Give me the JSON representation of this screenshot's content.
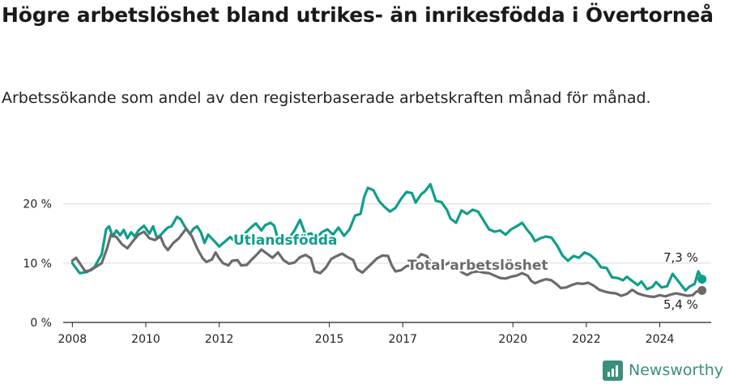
{
  "title": "Högre arbetslöshet bland utrikes- än inrikesfödda i Övertorneå",
  "subtitle": "Arbetssökande som andel av den registerbaserade arbetskraften månad för månad.",
  "brand": {
    "name": "Newsworthy",
    "color": "#3a8f7d"
  },
  "chart_data": {
    "type": "line",
    "ylim": [
      0,
      25
    ],
    "xlim": [
      2007.75,
      2025.4
    ],
    "y_ticks": [
      0,
      10,
      20
    ],
    "y_tick_labels": [
      "0 %",
      "10 %",
      "20 %"
    ],
    "x_ticks": [
      2008,
      2010,
      2012,
      2015,
      2017,
      2020,
      2022,
      2024
    ],
    "x_tick_labels": [
      "2008",
      "2010",
      "2012",
      "2015",
      "2017",
      "2020",
      "2022",
      "2024"
    ],
    "grid": true,
    "series": [
      {
        "name": "Utlandsfödda",
        "color": "#0e9e8b",
        "end_label": "7,3 %",
        "points": [
          [
            2008.0,
            10.0
          ],
          [
            2008.2,
            8.3
          ],
          [
            2008.4,
            8.5
          ],
          [
            2008.6,
            9.3
          ],
          [
            2008.8,
            11.5
          ],
          [
            2008.92,
            15.7
          ],
          [
            2009.0,
            16.2
          ],
          [
            2009.1,
            14.5
          ],
          [
            2009.2,
            15.5
          ],
          [
            2009.3,
            14.7
          ],
          [
            2009.4,
            15.6
          ],
          [
            2009.5,
            14.2
          ],
          [
            2009.6,
            15.2
          ],
          [
            2009.7,
            14.5
          ],
          [
            2009.8,
            15.5
          ],
          [
            2009.95,
            16.3
          ],
          [
            2010.1,
            15.0
          ],
          [
            2010.2,
            16.2
          ],
          [
            2010.3,
            14.3
          ],
          [
            2010.4,
            14.7
          ],
          [
            2010.5,
            15.4
          ],
          [
            2010.6,
            16.0
          ],
          [
            2010.7,
            16.2
          ],
          [
            2010.85,
            17.8
          ],
          [
            2010.95,
            17.4
          ],
          [
            2011.05,
            16.3
          ],
          [
            2011.2,
            14.9
          ],
          [
            2011.3,
            15.8
          ],
          [
            2011.4,
            16.2
          ],
          [
            2011.5,
            15.2
          ],
          [
            2011.6,
            13.4
          ],
          [
            2011.7,
            14.8
          ],
          [
            2011.9,
            13.5
          ],
          [
            2012.0,
            12.8
          ],
          [
            2012.15,
            13.6
          ],
          [
            2012.3,
            14.4
          ],
          [
            2012.45,
            13.5
          ],
          [
            2012.6,
            14.3
          ],
          [
            2012.75,
            15.3
          ],
          [
            2012.9,
            16.2
          ],
          [
            2013.0,
            16.7
          ],
          [
            2013.15,
            15.5
          ],
          [
            2013.25,
            16.4
          ],
          [
            2013.4,
            16.8
          ],
          [
            2013.5,
            16.3
          ],
          [
            2013.6,
            14.0
          ],
          [
            2013.75,
            13.8
          ],
          [
            2013.9,
            14.2
          ],
          [
            2014.05,
            15.5
          ],
          [
            2014.2,
            17.3
          ],
          [
            2014.35,
            14.8
          ],
          [
            2014.5,
            15.0
          ],
          [
            2014.65,
            14.3
          ],
          [
            2014.8,
            15.2
          ],
          [
            2014.95,
            15.7
          ],
          [
            2015.1,
            14.8
          ],
          [
            2015.25,
            16.0
          ],
          [
            2015.4,
            14.6
          ],
          [
            2015.55,
            15.7
          ],
          [
            2015.7,
            18.0
          ],
          [
            2015.85,
            18.3
          ],
          [
            2015.95,
            21.2
          ],
          [
            2016.05,
            22.7
          ],
          [
            2016.2,
            22.3
          ],
          [
            2016.35,
            20.5
          ],
          [
            2016.5,
            19.5
          ],
          [
            2016.65,
            18.7
          ],
          [
            2016.8,
            19.3
          ],
          [
            2016.95,
            20.8
          ],
          [
            2017.1,
            22.0
          ],
          [
            2017.25,
            21.8
          ],
          [
            2017.35,
            20.2
          ],
          [
            2017.5,
            21.6
          ],
          [
            2017.6,
            22.1
          ],
          [
            2017.75,
            23.3
          ],
          [
            2017.9,
            20.5
          ],
          [
            2018.05,
            20.3
          ],
          [
            2018.2,
            19.0
          ],
          [
            2018.3,
            17.5
          ],
          [
            2018.45,
            16.8
          ],
          [
            2018.6,
            18.9
          ],
          [
            2018.75,
            18.3
          ],
          [
            2018.9,
            19.0
          ],
          [
            2019.05,
            18.7
          ],
          [
            2019.2,
            17.2
          ],
          [
            2019.35,
            15.7
          ],
          [
            2019.5,
            15.3
          ],
          [
            2019.65,
            15.5
          ],
          [
            2019.8,
            14.8
          ],
          [
            2019.95,
            15.7
          ],
          [
            2020.1,
            16.2
          ],
          [
            2020.25,
            16.8
          ],
          [
            2020.4,
            15.5
          ],
          [
            2020.5,
            14.8
          ],
          [
            2020.6,
            13.7
          ],
          [
            2020.75,
            14.2
          ],
          [
            2020.9,
            14.5
          ],
          [
            2021.05,
            14.3
          ],
          [
            2021.2,
            13.0
          ],
          [
            2021.35,
            11.3
          ],
          [
            2021.5,
            10.4
          ],
          [
            2021.65,
            11.2
          ],
          [
            2021.8,
            10.9
          ],
          [
            2021.95,
            11.8
          ],
          [
            2022.1,
            11.4
          ],
          [
            2022.25,
            10.6
          ],
          [
            2022.4,
            9.3
          ],
          [
            2022.55,
            9.2
          ],
          [
            2022.7,
            7.6
          ],
          [
            2022.85,
            7.5
          ],
          [
            2023.0,
            7.1
          ],
          [
            2023.1,
            7.7
          ],
          [
            2023.25,
            7.0
          ],
          [
            2023.4,
            6.3
          ],
          [
            2023.5,
            6.9
          ],
          [
            2023.65,
            5.6
          ],
          [
            2023.8,
            6.0
          ],
          [
            2023.9,
            6.8
          ],
          [
            2024.05,
            5.9
          ],
          [
            2024.2,
            6.1
          ],
          [
            2024.35,
            8.2
          ],
          [
            2024.5,
            7.0
          ],
          [
            2024.6,
            6.2
          ],
          [
            2024.7,
            5.4
          ],
          [
            2024.8,
            6.0
          ],
          [
            2024.95,
            6.5
          ],
          [
            2025.05,
            8.6
          ],
          [
            2025.15,
            7.3
          ]
        ]
      },
      {
        "name": "Total arbetslöshet",
        "color": "#6b6b6b",
        "end_label": "5,4 %",
        "points": [
          [
            2008.0,
            10.4
          ],
          [
            2008.1,
            10.9
          ],
          [
            2008.2,
            10.0
          ],
          [
            2008.35,
            8.6
          ],
          [
            2008.5,
            8.8
          ],
          [
            2008.65,
            9.4
          ],
          [
            2008.8,
            10.0
          ],
          [
            2008.95,
            12.6
          ],
          [
            2009.05,
            14.8
          ],
          [
            2009.2,
            14.4
          ],
          [
            2009.35,
            13.2
          ],
          [
            2009.5,
            12.5
          ],
          [
            2009.65,
            13.7
          ],
          [
            2009.8,
            14.8
          ],
          [
            2009.95,
            15.3
          ],
          [
            2010.1,
            14.2
          ],
          [
            2010.25,
            13.9
          ],
          [
            2010.4,
            14.5
          ],
          [
            2010.5,
            13.0
          ],
          [
            2010.6,
            12.2
          ],
          [
            2010.75,
            13.4
          ],
          [
            2010.9,
            14.2
          ],
          [
            2011.0,
            15.0
          ],
          [
            2011.1,
            15.8
          ],
          [
            2011.25,
            14.6
          ],
          [
            2011.4,
            12.5
          ],
          [
            2011.55,
            10.8
          ],
          [
            2011.65,
            10.2
          ],
          [
            2011.8,
            10.6
          ],
          [
            2011.9,
            11.8
          ],
          [
            2012.0,
            10.8
          ],
          [
            2012.1,
            10.0
          ],
          [
            2012.25,
            9.6
          ],
          [
            2012.35,
            10.4
          ],
          [
            2012.5,
            10.5
          ],
          [
            2012.6,
            9.6
          ],
          [
            2012.75,
            9.7
          ],
          [
            2012.9,
            10.7
          ],
          [
            2013.0,
            11.3
          ],
          [
            2013.15,
            12.3
          ],
          [
            2013.3,
            11.6
          ],
          [
            2013.45,
            10.9
          ],
          [
            2013.6,
            11.8
          ],
          [
            2013.75,
            10.5
          ],
          [
            2013.9,
            9.9
          ],
          [
            2014.05,
            10.1
          ],
          [
            2014.2,
            11.0
          ],
          [
            2014.35,
            11.4
          ],
          [
            2014.5,
            10.8
          ],
          [
            2014.6,
            8.6
          ],
          [
            2014.75,
            8.3
          ],
          [
            2014.9,
            9.2
          ],
          [
            2015.05,
            10.7
          ],
          [
            2015.2,
            11.2
          ],
          [
            2015.35,
            11.6
          ],
          [
            2015.5,
            11.0
          ],
          [
            2015.65,
            10.5
          ],
          [
            2015.75,
            9.0
          ],
          [
            2015.9,
            8.4
          ],
          [
            2016.0,
            9.0
          ],
          [
            2016.15,
            9.9
          ],
          [
            2016.3,
            10.8
          ],
          [
            2016.45,
            11.3
          ],
          [
            2016.6,
            11.2
          ],
          [
            2016.7,
            9.6
          ],
          [
            2016.8,
            8.6
          ],
          [
            2016.95,
            8.8
          ],
          [
            2017.1,
            9.5
          ],
          [
            2017.25,
            9.6
          ],
          [
            2017.4,
            10.8
          ],
          [
            2017.5,
            11.5
          ],
          [
            2017.65,
            11.2
          ],
          [
            2017.75,
            10.3
          ],
          [
            2017.9,
            9.7
          ],
          [
            2018.0,
            9.3
          ],
          [
            2018.15,
            9.7
          ],
          [
            2018.3,
            10.2
          ],
          [
            2018.45,
            9.5
          ],
          [
            2018.6,
            8.5
          ],
          [
            2018.75,
            8.0
          ],
          [
            2018.9,
            8.5
          ],
          [
            2019.05,
            8.6
          ],
          [
            2019.2,
            8.4
          ],
          [
            2019.35,
            8.3
          ],
          [
            2019.5,
            7.9
          ],
          [
            2019.65,
            7.5
          ],
          [
            2019.8,
            7.4
          ],
          [
            2019.95,
            7.7
          ],
          [
            2020.1,
            7.9
          ],
          [
            2020.25,
            8.3
          ],
          [
            2020.4,
            7.9
          ],
          [
            2020.5,
            7.0
          ],
          [
            2020.6,
            6.6
          ],
          [
            2020.75,
            7.0
          ],
          [
            2020.9,
            7.3
          ],
          [
            2021.05,
            7.1
          ],
          [
            2021.2,
            6.4
          ],
          [
            2021.3,
            5.8
          ],
          [
            2021.45,
            5.9
          ],
          [
            2021.6,
            6.3
          ],
          [
            2021.75,
            6.6
          ],
          [
            2021.9,
            6.5
          ],
          [
            2022.05,
            6.7
          ],
          [
            2022.2,
            6.2
          ],
          [
            2022.35,
            5.5
          ],
          [
            2022.5,
            5.2
          ],
          [
            2022.65,
            5.0
          ],
          [
            2022.8,
            4.9
          ],
          [
            2022.95,
            4.5
          ],
          [
            2023.1,
            4.8
          ],
          [
            2023.25,
            5.5
          ],
          [
            2023.4,
            4.9
          ],
          [
            2023.55,
            4.6
          ],
          [
            2023.7,
            4.4
          ],
          [
            2023.85,
            4.3
          ],
          [
            2024.0,
            4.6
          ],
          [
            2024.15,
            4.4
          ],
          [
            2024.3,
            4.7
          ],
          [
            2024.45,
            4.9
          ],
          [
            2024.6,
            4.7
          ],
          [
            2024.75,
            4.5
          ],
          [
            2024.9,
            4.6
          ],
          [
            2025.0,
            5.2
          ],
          [
            2025.15,
            5.4
          ]
        ]
      }
    ]
  }
}
